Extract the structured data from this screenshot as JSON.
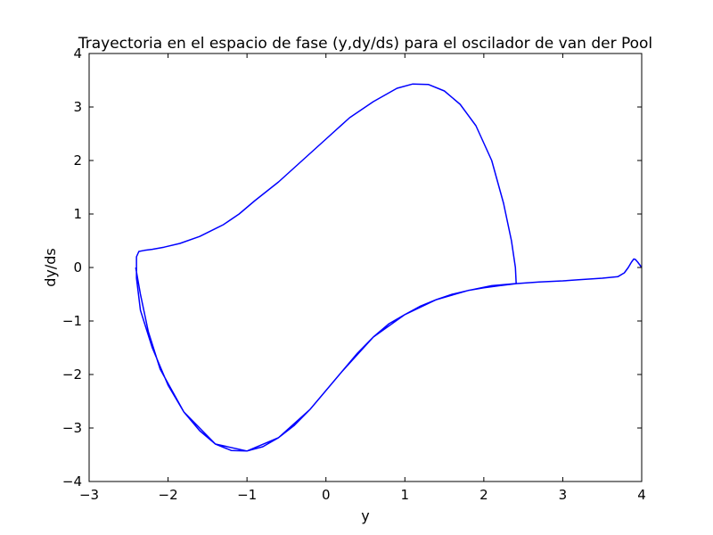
{
  "chart_data": {
    "type": "line",
    "title": "Trayectoria en el espacio de fase (y,dy/ds) para el oscilador de van der Pool",
    "xlabel": "y",
    "ylabel": "dy/ds",
    "xlim": [
      -3,
      4
    ],
    "ylim": [
      -4,
      4
    ],
    "xticks": [
      -3,
      -2,
      -1,
      0,
      1,
      2,
      3,
      4
    ],
    "yticks": [
      -4,
      -3,
      -2,
      -1,
      0,
      1,
      2,
      3,
      4
    ],
    "xtick_labels": [
      "−3",
      "−2",
      "−1",
      "0",
      "1",
      "2",
      "3",
      "4"
    ],
    "ytick_labels": [
      "−4",
      "−3",
      "−2",
      "−1",
      "0",
      "1",
      "2",
      "3",
      "4"
    ],
    "grid": false,
    "series": [
      {
        "color": "#0000ff",
        "x": [
          4.0,
          3.95,
          3.92,
          3.9,
          3.87,
          3.83,
          3.78,
          3.7,
          3.5,
          3.2,
          3.0,
          2.7,
          2.42,
          2.2,
          2.0,
          1.8,
          1.6,
          1.4,
          1.2,
          1.0,
          0.8,
          0.6,
          0.4,
          0.2,
          0.0,
          -0.2,
          -0.4,
          -0.6,
          -0.8,
          -1.0,
          -1.2,
          -1.4,
          -1.6,
          -1.8,
          -2.0,
          -2.2,
          -2.35,
          -2.4,
          -2.4,
          -2.37,
          -2.3,
          -2.2,
          -2.05,
          -1.85,
          -1.6,
          -1.3,
          -1.1,
          -0.9,
          -0.6,
          -0.3,
          0.0,
          0.3,
          0.6,
          0.9,
          1.1,
          1.3,
          1.5,
          1.7,
          1.9,
          2.1,
          2.25,
          2.35,
          2.4,
          2.41,
          2.1,
          1.8,
          1.4,
          1.0,
          0.6,
          0.2,
          -0.2,
          -0.6,
          -1.0,
          -1.4,
          -1.8,
          -2.1,
          -2.25,
          -2.35,
          -2.41
        ],
        "y": [
          0.0,
          0.1,
          0.15,
          0.16,
          0.1,
          0.0,
          -0.1,
          -0.17,
          -0.2,
          -0.23,
          -0.25,
          -0.27,
          -0.3,
          -0.34,
          -0.38,
          -0.43,
          -0.5,
          -0.6,
          -0.72,
          -0.88,
          -1.05,
          -1.3,
          -1.6,
          -1.95,
          -2.3,
          -2.65,
          -2.95,
          -3.18,
          -3.35,
          -3.43,
          -3.42,
          -3.3,
          -3.05,
          -2.7,
          -2.2,
          -1.5,
          -0.8,
          -0.2,
          0.2,
          0.3,
          0.32,
          0.34,
          0.38,
          0.45,
          0.58,
          0.8,
          1.0,
          1.25,
          1.6,
          2.0,
          2.4,
          2.8,
          3.1,
          3.35,
          3.43,
          3.42,
          3.3,
          3.05,
          2.65,
          2.0,
          1.2,
          0.5,
          0.0,
          -0.3,
          -0.34,
          -0.43,
          -0.6,
          -0.88,
          -1.3,
          -1.95,
          -2.65,
          -3.18,
          -3.43,
          -3.3,
          -2.7,
          -1.9,
          -1.2,
          -0.5,
          0.0
        ]
      }
    ]
  }
}
